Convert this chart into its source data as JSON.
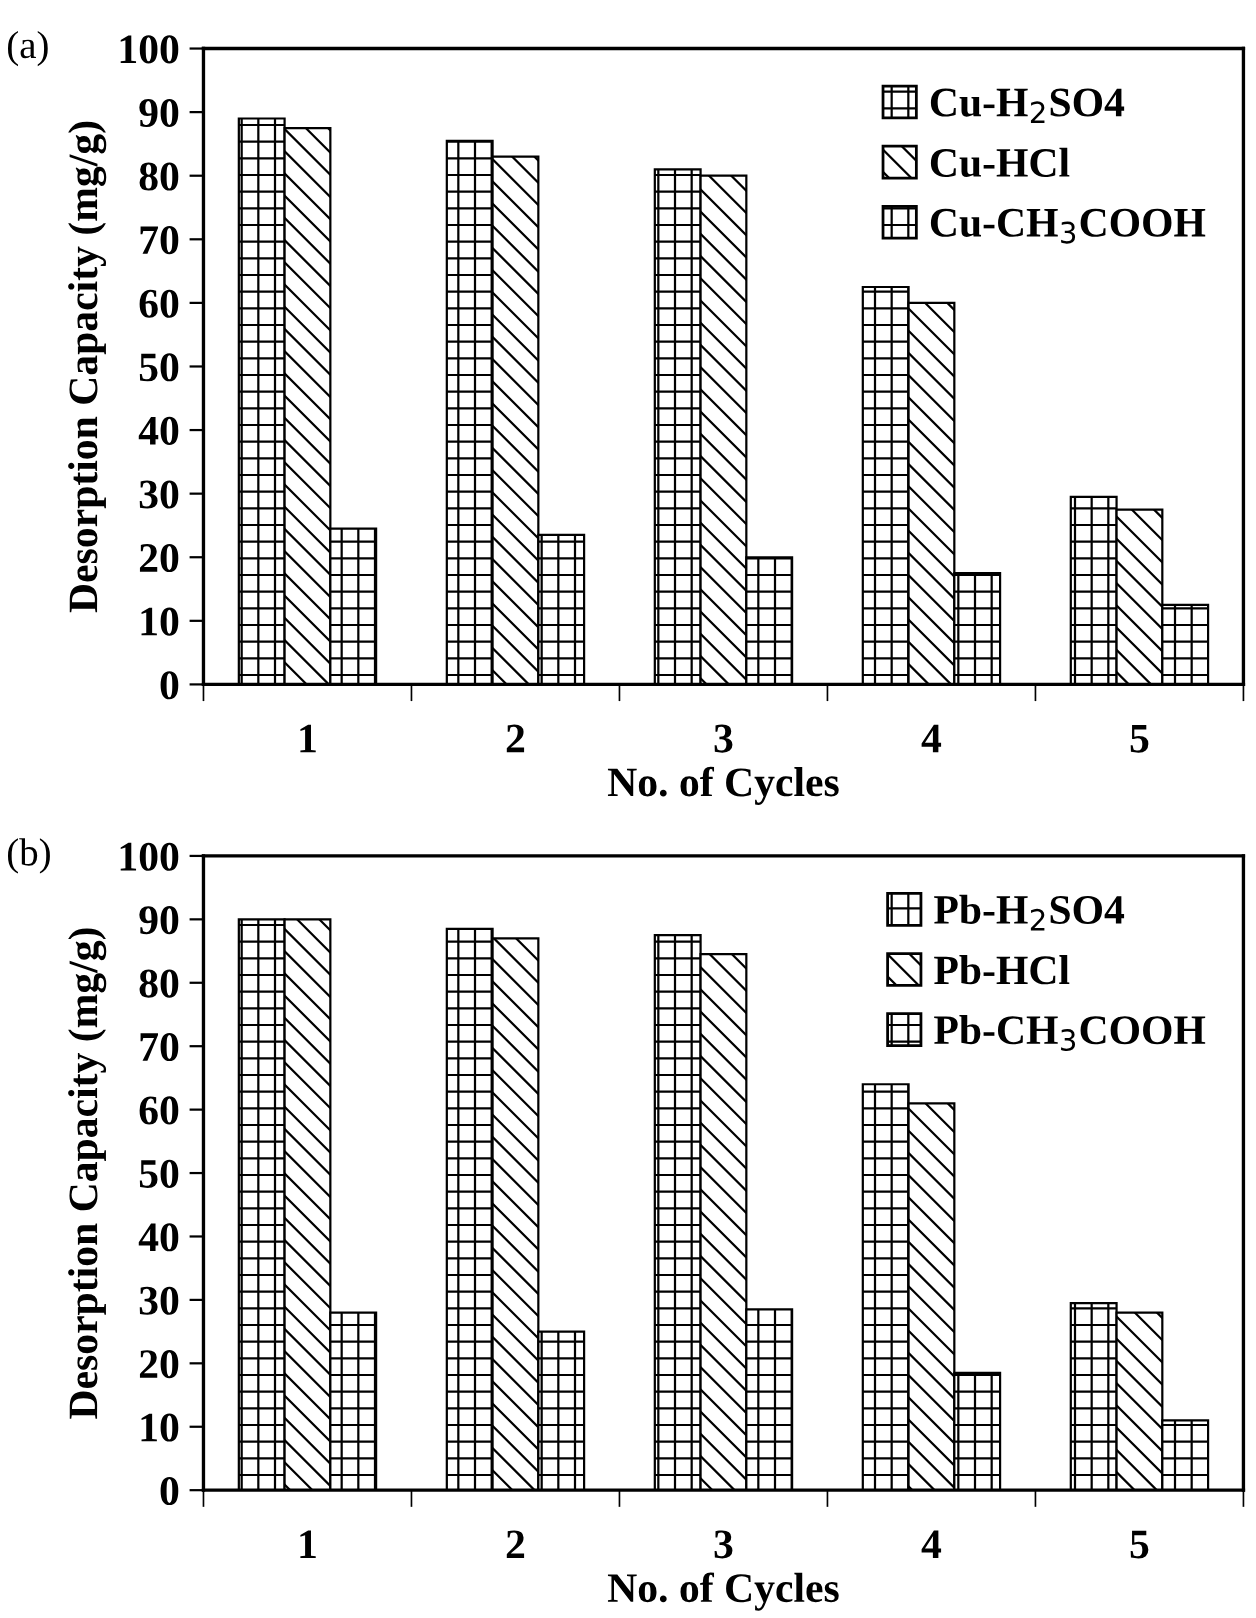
{
  "chart_data": [
    {
      "type": "bar",
      "title": "(a)",
      "xlabel": "No. of Cycles",
      "ylabel": "Desorption Capacity (mg/g)",
      "categories": [
        "1",
        "2",
        "3",
        "4",
        "5"
      ],
      "ylim": [
        0,
        100
      ],
      "yticks": [
        0,
        10,
        20,
        30,
        40,
        50,
        60,
        70,
        80,
        90,
        100
      ],
      "grid": false,
      "legend": "top right",
      "series": [
        {
          "name": "Cu-H$_{2}$SO4",
          "color": "#000000",
          "values": [
            89,
            85.5,
            81,
            62.5,
            29.5
          ]
        },
        {
          "name": "Cu-HCl",
          "color": "#000000",
          "values": [
            87.5,
            83,
            80,
            60,
            27.5
          ]
        },
        {
          "name": "Cu-CH$_{3}$COOH",
          "color": "#000000",
          "values": [
            24.5,
            23.5,
            20,
            17.5,
            12.5
          ]
        }
      ]
    },
    {
      "type": "bar",
      "title": "(b)",
      "xlabel": "No. of Cycles",
      "ylabel": "Desorption Capacity (mg/g)",
      "categories": [
        "1",
        "2",
        "3",
        "4",
        "5"
      ],
      "ylim": [
        0,
        100
      ],
      "yticks": [
        0,
        10,
        20,
        30,
        40,
        50,
        60,
        70,
        80,
        90,
        100
      ],
      "grid": false,
      "legend": "top right",
      "series": [
        {
          "name": "Pb-H$_{2}$SO4",
          "color": "#000000",
          "values": [
            90,
            88.5,
            87.5,
            64,
            29.5
          ]
        },
        {
          "name": "Pb-HCl",
          "color": "#000000",
          "values": [
            90,
            87,
            84.5,
            61,
            28
          ]
        },
        {
          "name": "Pb-CH$_{3}$COOH",
          "color": "#000000",
          "values": [
            28,
            25,
            28.5,
            18.5,
            11
          ]
        }
      ]
    }
  ]
}
